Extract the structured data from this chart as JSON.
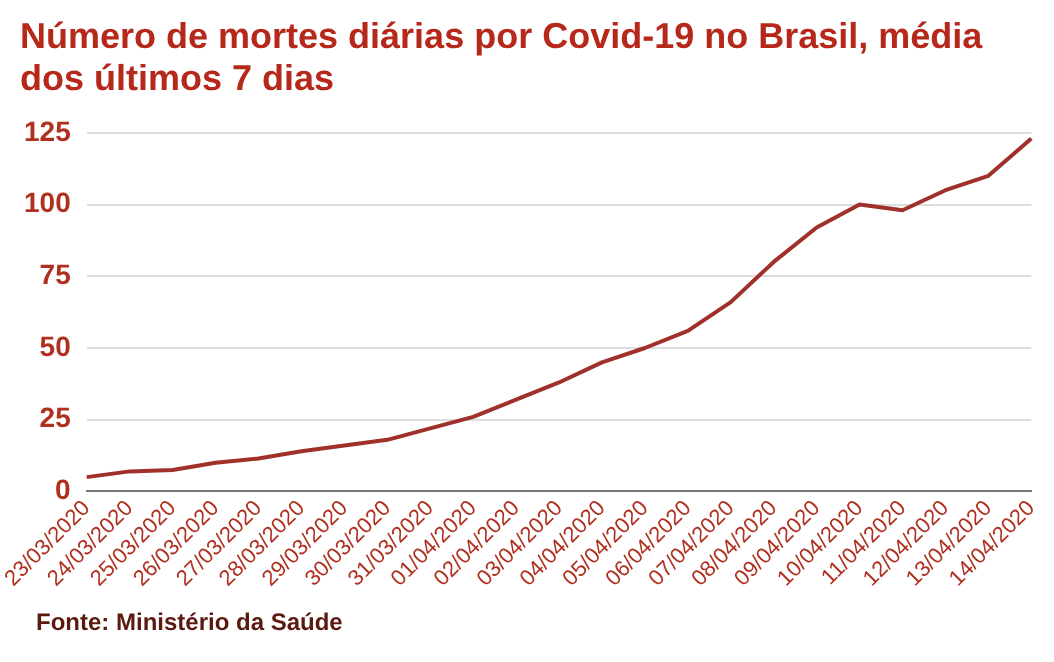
{
  "chart_data": {
    "type": "line",
    "title": "Número de mortes diárias por Covid-19 no Brasil, média dos últimos 7 dias",
    "categories": [
      "23/03/2020",
      "24/03/2020",
      "25/03/2020",
      "26/03/2020",
      "27/03/2020",
      "28/03/2020",
      "29/03/2020",
      "30/03/2020",
      "31/03/2020",
      "01/04/2020",
      "02/04/2020",
      "03/04/2020",
      "04/04/2020",
      "05/04/2020",
      "06/04/2020",
      "07/04/2020",
      "08/04/2020",
      "09/04/2020",
      "10/04/2020",
      "11/04/2020",
      "12/04/2020",
      "13/04/2020",
      "14/04/2020"
    ],
    "series": [
      {
        "color": "#a0302a",
        "values": [
          5,
          7,
          7.5,
          10,
          11.5,
          14,
          16,
          18,
          22,
          26,
          32,
          38,
          45,
          50,
          56,
          66,
          80,
          92,
          100,
          98,
          105,
          110,
          123
        ]
      }
    ],
    "ylim": [
      0,
      125
    ],
    "yticks": [
      0,
      25,
      50,
      75,
      100,
      125
    ],
    "grid": "y",
    "legend": false,
    "marker": "none",
    "line_style": "solid",
    "annotations": [
      "Fonte: Ministério da Saúde"
    ]
  }
}
